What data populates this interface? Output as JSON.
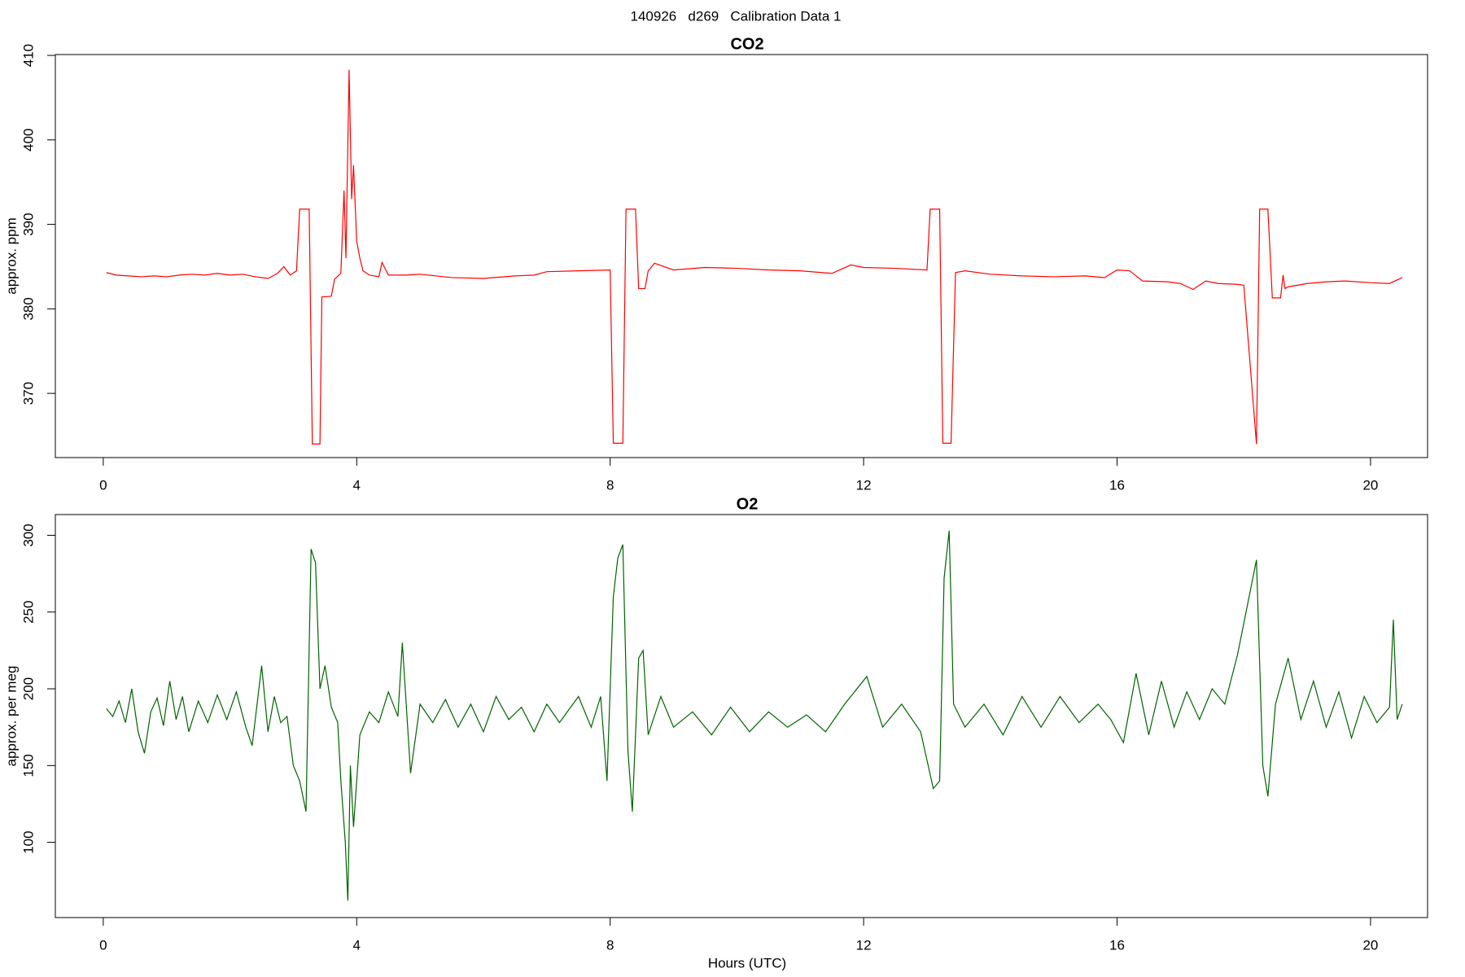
{
  "title": "140926   d269   Calibration Data 1",
  "chart_data": [
    {
      "type": "line",
      "title": "CO2",
      "ylabel": "approx. ppm",
      "xlim": [
        -0.756,
        20.9
      ],
      "ylim": [
        362.4,
        410.1
      ],
      "xticks": [
        0,
        4,
        8,
        12,
        16,
        20
      ],
      "yticks": [
        370,
        380,
        390,
        400,
        410
      ],
      "series": [
        {
          "name": "CO2",
          "color": "#ff0000",
          "x": [
            0.05,
            0.2,
            0.4,
            0.6,
            0.8,
            1.0,
            1.2,
            1.4,
            1.6,
            1.8,
            2.0,
            2.2,
            2.4,
            2.6,
            2.75,
            2.85,
            2.95,
            3.05,
            3.1,
            3.25,
            3.3,
            3.42,
            3.45,
            3.6,
            3.65,
            3.75,
            3.8,
            3.83,
            3.88,
            3.92,
            3.95,
            4.0,
            4.05,
            4.1,
            4.2,
            4.35,
            4.4,
            4.5,
            4.8,
            5.0,
            5.5,
            6.0,
            6.5,
            6.8,
            7.0,
            7.5,
            8.0,
            8.05,
            8.2,
            8.25,
            8.4,
            8.45,
            8.55,
            8.6,
            8.7,
            9.0,
            9.5,
            10.0,
            10.5,
            11.0,
            11.5,
            11.8,
            12.0,
            12.5,
            13.0,
            13.05,
            13.2,
            13.25,
            13.38,
            13.45,
            13.6,
            14.0,
            14.5,
            15.0,
            15.5,
            15.8,
            16.0,
            16.2,
            16.4,
            16.8,
            17.0,
            17.2,
            17.4,
            17.6,
            17.9,
            18.0,
            18.2,
            18.25,
            18.38,
            18.45,
            18.58,
            18.62,
            18.65,
            18.7,
            19.0,
            19.3,
            19.6,
            20.0,
            20.3,
            20.5
          ],
          "values": [
            384.3,
            384.0,
            383.9,
            383.8,
            383.9,
            383.8,
            384.0,
            384.1,
            384.0,
            384.2,
            384.0,
            384.1,
            383.8,
            383.6,
            384.2,
            385.0,
            384.0,
            384.5,
            391.8,
            391.8,
            364.0,
            364.0,
            381.4,
            381.5,
            383.5,
            384.2,
            394,
            386,
            408.3,
            393,
            397,
            388,
            386,
            384.5,
            384,
            383.8,
            385.5,
            384,
            384,
            384.1,
            383.7,
            383.6,
            383.9,
            384,
            384.4,
            384.5,
            384.6,
            364.1,
            364.1,
            391.8,
            391.8,
            382.4,
            382.4,
            384.5,
            385.4,
            384.6,
            384.9,
            384.8,
            384.6,
            384.5,
            384.2,
            385.2,
            384.9,
            384.8,
            384.6,
            391.8,
            391.8,
            364.1,
            364.1,
            384.3,
            384.5,
            384.1,
            383.9,
            383.8,
            383.9,
            383.7,
            384.6,
            384.5,
            383.3,
            383.2,
            383.0,
            382.3,
            383.3,
            383.0,
            382.9,
            382.8,
            364.0,
            391.8,
            391.8,
            381.3,
            381.3,
            384.0,
            382.4,
            382.6,
            383.0,
            383.2,
            383.3,
            383.1,
            383.0,
            383.7
          ]
        }
      ]
    },
    {
      "type": "line",
      "title": "O2",
      "ylabel": "approx. per meg",
      "xlabel": "Hours (UTC)",
      "xlim": [
        -0.756,
        20.9
      ],
      "ylim": [
        51,
        313.5
      ],
      "xticks": [
        0,
        4,
        8,
        12,
        16,
        20
      ],
      "yticks": [
        100,
        150,
        200,
        250,
        300
      ],
      "series": [
        {
          "name": "O2",
          "color": "#006400",
          "x": [
            0.05,
            0.15,
            0.25,
            0.35,
            0.45,
            0.55,
            0.65,
            0.75,
            0.85,
            0.95,
            1.05,
            1.15,
            1.25,
            1.35,
            1.5,
            1.65,
            1.8,
            1.95,
            2.1,
            2.25,
            2.35,
            2.5,
            2.6,
            2.7,
            2.8,
            2.9,
            3.0,
            3.1,
            3.2,
            3.28,
            3.35,
            3.42,
            3.5,
            3.6,
            3.7,
            3.75,
            3.82,
            3.86,
            3.9,
            3.95,
            4.05,
            4.2,
            4.35,
            4.5,
            4.65,
            4.72,
            4.85,
            5.0,
            5.2,
            5.4,
            5.6,
            5.8,
            6.0,
            6.2,
            6.4,
            6.6,
            6.8,
            7.0,
            7.2,
            7.5,
            7.7,
            7.85,
            7.95,
            8.05,
            8.12,
            8.2,
            8.28,
            8.35,
            8.45,
            8.52,
            8.6,
            8.8,
            9.0,
            9.3,
            9.6,
            9.9,
            10.2,
            10.5,
            10.8,
            11.1,
            11.4,
            11.7,
            12.05,
            12.3,
            12.6,
            12.9,
            13.1,
            13.2,
            13.27,
            13.35,
            13.42,
            13.6,
            13.9,
            14.2,
            14.5,
            14.8,
            15.1,
            15.4,
            15.7,
            15.9,
            16.1,
            16.3,
            16.5,
            16.7,
            16.9,
            17.1,
            17.3,
            17.5,
            17.7,
            17.9,
            18.2,
            18.3,
            18.38,
            18.5,
            18.7,
            18.9,
            19.1,
            19.3,
            19.5,
            19.7,
            19.9,
            20.1,
            20.3,
            20.36,
            20.42,
            20.5
          ],
          "values": [
            187,
            182,
            192,
            178,
            200,
            172,
            158,
            185,
            194,
            176,
            205,
            180,
            195,
            172,
            192,
            178,
            196,
            180,
            198,
            175,
            163,
            215,
            172,
            195,
            178,
            182,
            150,
            140,
            120,
            291,
            282,
            200,
            215,
            188,
            178,
            140,
            100,
            62,
            150,
            110,
            170,
            185,
            178,
            198,
            182,
            230,
            145,
            190,
            178,
            193,
            175,
            190,
            172,
            195,
            180,
            188,
            172,
            190,
            178,
            195,
            175,
            195,
            140,
            260,
            285,
            294,
            160,
            120,
            220,
            225,
            170,
            195,
            175,
            185,
            170,
            188,
            172,
            185,
            175,
            183,
            172,
            190,
            208,
            175,
            190,
            172,
            135,
            140,
            272,
            303,
            190,
            175,
            190,
            170,
            195,
            175,
            195,
            178,
            190,
            180,
            165,
            210,
            170,
            205,
            175,
            198,
            180,
            200,
            190,
            222,
            284,
            150,
            130,
            190,
            220,
            180,
            205,
            175,
            198,
            168,
            195,
            178,
            188,
            245,
            180,
            190
          ]
        }
      ]
    }
  ]
}
